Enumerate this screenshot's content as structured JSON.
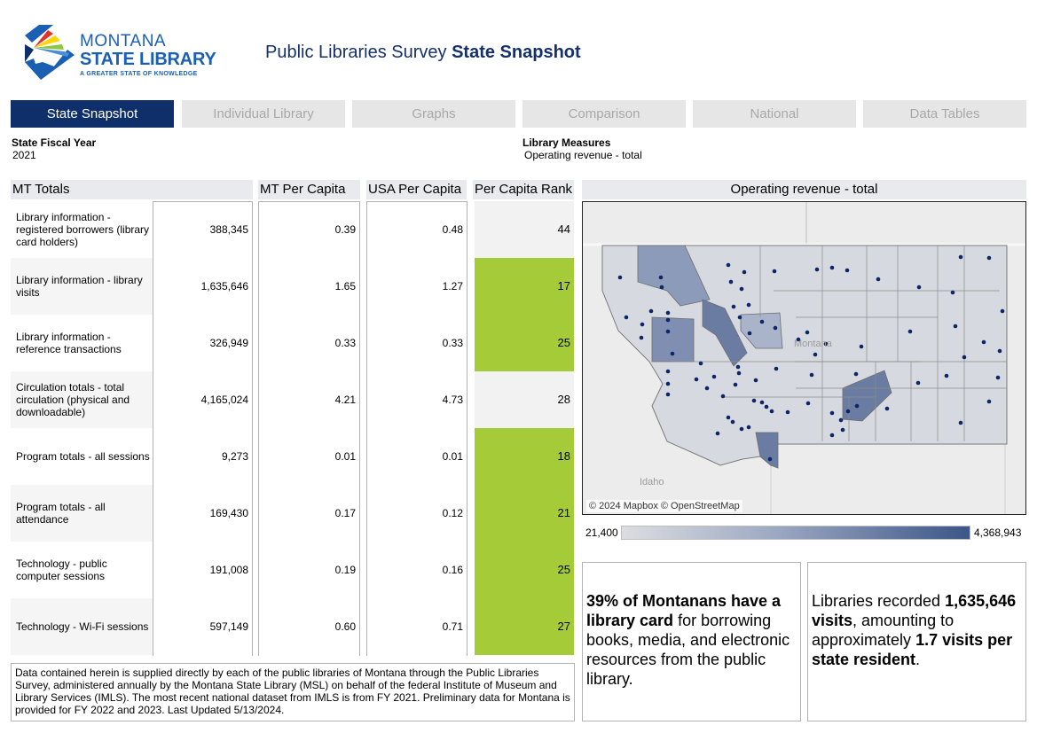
{
  "header": {
    "logo": {
      "line1": "MONTANA",
      "line2": "STATE LIBRARY",
      "line3": "A GREATER STATE OF KNOWLEDGE"
    },
    "title_regular": "Public Libraries Survey ",
    "title_bold": "State Snapshot"
  },
  "tabs": [
    {
      "label": "State Snapshot",
      "active": true
    },
    {
      "label": "Individual Library",
      "active": false
    },
    {
      "label": "Graphs",
      "active": false
    },
    {
      "label": "Comparison",
      "active": false
    },
    {
      "label": "National",
      "active": false
    },
    {
      "label": "Data Tables",
      "active": false
    }
  ],
  "filters": {
    "fiscal_year": {
      "label": "State Fiscal Year",
      "value": "2021"
    },
    "measures": {
      "label": "Library Measures",
      "value": "Operating revenue - total"
    }
  },
  "table": {
    "headers": {
      "totals": "MT Totals",
      "mt_per_capita": "MT Per Capita",
      "usa_per_capita": "USA Per Capita",
      "rank": "Per Capita Rank"
    },
    "rows": [
      {
        "label": "Library information - registered borrowers (library card holders)",
        "total": "388,345",
        "mt": "0.39",
        "usa": "0.48",
        "rank": "44",
        "highlight": false
      },
      {
        "label": "Library information - library visits",
        "total": "1,635,646",
        "mt": "1.65",
        "usa": "1.27",
        "rank": "17",
        "highlight": true
      },
      {
        "label": "Library information - reference transactions",
        "total": "326,949",
        "mt": "0.33",
        "usa": "0.33",
        "rank": "25",
        "highlight": true
      },
      {
        "label": "Circulation totals - total circulation (physical and downloadable)",
        "total": "4,165,024",
        "mt": "4.21",
        "usa": "4.73",
        "rank": "28",
        "highlight": false
      },
      {
        "label": "Program totals - all sessions",
        "total": "9,273",
        "mt": "0.01",
        "usa": "0.01",
        "rank": "18",
        "highlight": true
      },
      {
        "label": "Program totals - all attendance",
        "total": "169,430",
        "mt": "0.17",
        "usa": "0.12",
        "rank": "21",
        "highlight": true
      },
      {
        "label": "Technology - public computer sessions",
        "total": "191,008",
        "mt": "0.19",
        "usa": "0.16",
        "rank": "25",
        "highlight": true
      },
      {
        "label": "Technology - Wi-Fi sessions",
        "total": "597,149",
        "mt": "0.60",
        "usa": "0.71",
        "rank": "27",
        "highlight": true
      }
    ]
  },
  "map": {
    "title": "Operating revenue - total",
    "state_label": "Montana",
    "neighbor_label": "Idaho",
    "credit": "© 2024 Mapbox © OpenStreetMap",
    "legend_min": "21,400",
    "legend_max": "4,368,943",
    "colors": {
      "low": "#dcdde1",
      "high": "#3b5687",
      "dot": "#0b2566"
    }
  },
  "kpis": {
    "card1": {
      "bold": "39% of Montanans have a library card",
      "rest": " for borrowing books, media, and electronic resources from the public library."
    },
    "card2": {
      "pre": "Libraries recorded ",
      "bold1": "1,635,646 visits",
      "mid": ", amounting to approximately ",
      "bold2": "1.7 visits per state resident",
      "end": "."
    }
  },
  "footnote": "Data contained herein is supplied directly by each of the public libraries of Montana through the Public Libraries Survey, administered annually by the Montana State Library (MSL) on behalf of the federal Institute of Museum and Library Services (IMLS). The most recent national dataset from IMLS is from FY 2021. Preliminary data for Montana is provided for FY 2022 and 2023. Last Updated 5/13/2024.",
  "colors": {
    "nav_active": "#0f2f6b",
    "rank_highlight": "#a6cb39",
    "title": "#15306b"
  }
}
